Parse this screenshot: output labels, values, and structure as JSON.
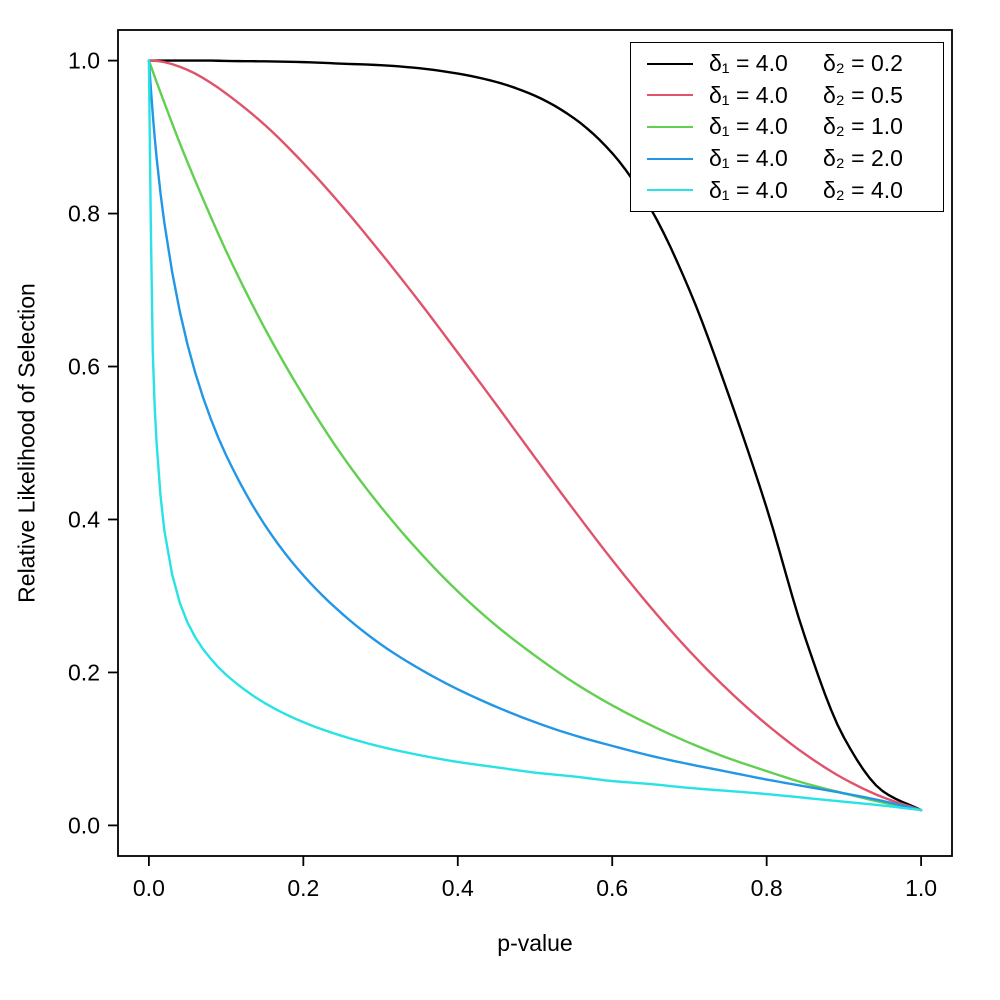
{
  "figure": {
    "background": "#ffffff",
    "border_color": "#000000"
  },
  "chart_data": {
    "type": "line",
    "title": "",
    "xlabel": "p-value",
    "ylabel": "Relative Likelihood of Selection",
    "xlim": [
      0,
      1
    ],
    "ylim": [
      0,
      1
    ],
    "grid": false,
    "legend_position": "top-right",
    "xticks": [
      0.0,
      0.2,
      0.4,
      0.6,
      0.8,
      1.0
    ],
    "yticks": [
      0.0,
      0.2,
      0.4,
      0.6,
      0.8,
      1.0
    ],
    "xtick_labels": [
      "0.0",
      "0.2",
      "0.4",
      "0.6",
      "0.8",
      "1.0"
    ],
    "ytick_labels": [
      "0.0",
      "0.2",
      "0.4",
      "0.6",
      "0.8",
      "1.0"
    ],
    "x": [
      0,
      0.005,
      0.01,
      0.02,
      0.04,
      0.06,
      0.08,
      0.1,
      0.15,
      0.2,
      0.25,
      0.3,
      0.35,
      0.4,
      0.45,
      0.5,
      0.55,
      0.6,
      0.65,
      0.7,
      0.75,
      0.8,
      0.85,
      0.9,
      0.95,
      1.0
    ],
    "series": [
      {
        "name": "δ₁ = 4.0  δ₂ = 0.2",
        "color": "#000000",
        "values": [
          1.0,
          1.0,
          1.0,
          1.0,
          1.0,
          1.0,
          1.0,
          0.9995,
          0.999,
          0.998,
          0.996,
          0.994,
          0.99,
          0.983,
          0.972,
          0.954,
          0.925,
          0.879,
          0.806,
          0.7,
          0.565,
          0.415,
          0.245,
          0.115,
          0.045,
          0.02
        ]
      },
      {
        "name": "δ₁ = 4.0  δ₂ = 0.5",
        "color": "#DF536B",
        "values": [
          1.0,
          0.9999,
          0.9995,
          0.998,
          0.992,
          0.983,
          0.971,
          0.957,
          0.916,
          0.866,
          0.81,
          0.749,
          0.685,
          0.618,
          0.55,
          0.481,
          0.413,
          0.347,
          0.285,
          0.228,
          0.177,
          0.132,
          0.093,
          0.061,
          0.037,
          0.02
        ]
      },
      {
        "name": "δ₁ = 4.0  δ₂ = 1.0",
        "color": "#61D04F",
        "values": [
          1.0,
          0.986,
          0.972,
          0.945,
          0.892,
          0.843,
          0.796,
          0.751,
          0.65,
          0.562,
          0.484,
          0.417,
          0.358,
          0.306,
          0.261,
          0.222,
          0.187,
          0.157,
          0.131,
          0.108,
          0.088,
          0.071,
          0.055,
          0.042,
          0.03,
          0.02
        ]
      },
      {
        "name": "δ₁ = 4.0  δ₂ = 2.0",
        "color": "#2297E6",
        "values": [
          1.0,
          0.93,
          0.873,
          0.788,
          0.672,
          0.592,
          0.532,
          0.484,
          0.393,
          0.327,
          0.277,
          0.237,
          0.205,
          0.178,
          0.155,
          0.135,
          0.118,
          0.104,
          0.091,
          0.08,
          0.07,
          0.06,
          0.051,
          0.042,
          0.032,
          0.02
        ]
      },
      {
        "name": "δ₁ = 4.0  δ₂ = 4.0",
        "color": "#28E2E5",
        "values": [
          1.0,
          0.62,
          0.5,
          0.386,
          0.291,
          0.246,
          0.218,
          0.197,
          0.16,
          0.135,
          0.117,
          0.103,
          0.092,
          0.083,
          0.076,
          0.069,
          0.064,
          0.058,
          0.054,
          0.049,
          0.045,
          0.041,
          0.036,
          0.031,
          0.026,
          0.02
        ]
      }
    ],
    "legend": [
      {
        "delta1": "δ₁ = 4.0",
        "delta2": "δ₂ = 0.2",
        "color": "#000000"
      },
      {
        "delta1": "δ₁ = 4.0",
        "delta2": "δ₂ = 0.5",
        "color": "#DF536B"
      },
      {
        "delta1": "δ₁ = 4.0",
        "delta2": "δ₂ = 1.0",
        "color": "#61D04F"
      },
      {
        "delta1": "δ₁ = 4.0",
        "delta2": "δ₂ = 2.0",
        "color": "#2297E6"
      },
      {
        "delta1": "δ₁ = 4.0",
        "delta2": "δ₂ = 4.0",
        "color": "#28E2E5"
      }
    ]
  }
}
